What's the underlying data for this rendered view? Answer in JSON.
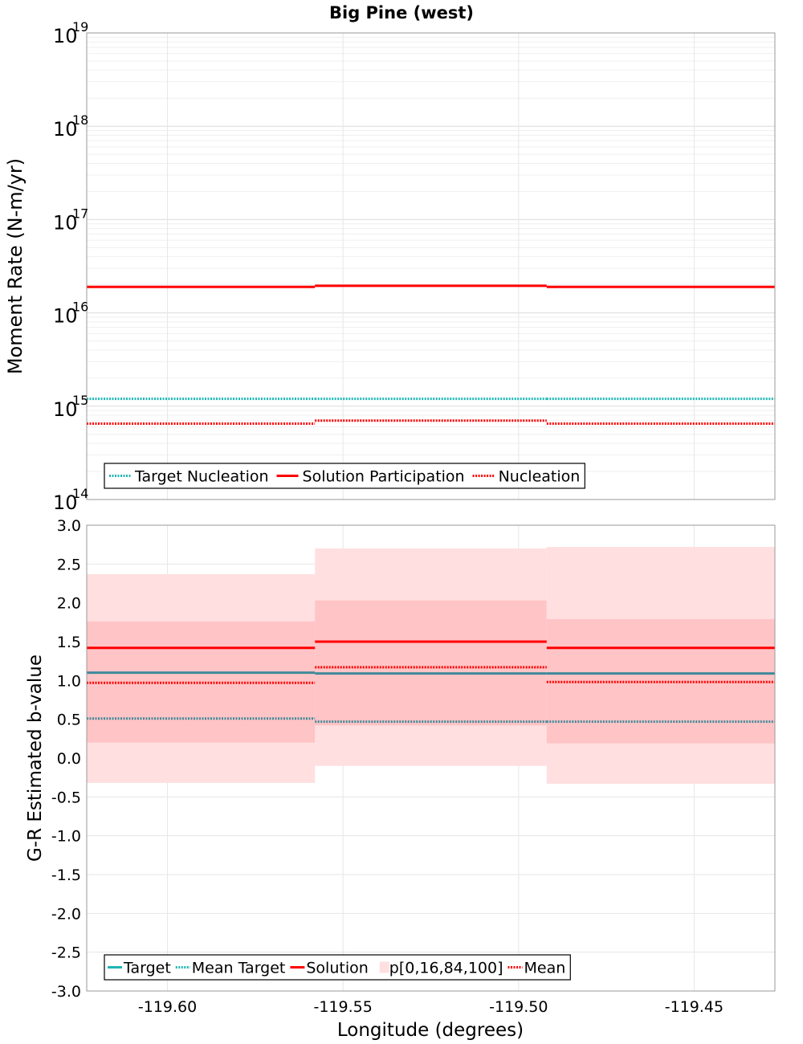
{
  "colors": {
    "target": "#1fb5b5",
    "target_line": "#3f8a9a",
    "solution": "#ff0000",
    "band_outer": "#ffdfe0",
    "band_inner": "#ffc4c6",
    "grid": "#e6e6e6",
    "frame": "#999999"
  },
  "chart_data": [
    {
      "type": "line",
      "title": "Big Pine (west)",
      "ylabel": "Moment Rate (N-m/yr)",
      "y_scale": "log",
      "ylim": [
        100000000000000.0,
        1e+19
      ],
      "xlim": [
        -119.623,
        -119.427
      ],
      "grid": true,
      "legend_position": "bottom-left",
      "y_tick_labels": [
        {
          "base": "10",
          "exp": "14"
        },
        {
          "base": "10",
          "exp": "15"
        },
        {
          "base": "10",
          "exp": "16"
        },
        {
          "base": "10",
          "exp": "17"
        },
        {
          "base": "10",
          "exp": "18"
        },
        {
          "base": "10",
          "exp": "19"
        }
      ],
      "segments": [
        [
          -119.623,
          -119.558
        ],
        [
          -119.558,
          -119.492
        ],
        [
          -119.492,
          -119.427
        ]
      ],
      "series": [
        {
          "name": "Target Nucleation",
          "style": "dotted",
          "color": "#1fb5b5",
          "values": [
            1200000000000000.0,
            1200000000000000.0,
            1200000000000000.0
          ]
        },
        {
          "name": "Solution Participation",
          "style": "solid",
          "color": "#ff0000",
          "values": [
            1.9e+16,
            1.95e+16,
            1.9e+16
          ]
        },
        {
          "name": "Nucleation",
          "style": "dotted",
          "color": "#ff0000",
          "values": [
            650000000000000.0,
            700000000000000.0,
            650000000000000.0
          ]
        }
      ]
    },
    {
      "type": "line",
      "xlabel": "Longitude (degrees)",
      "ylabel": "G-R Estimated b-value",
      "ylim": [
        -3.0,
        3.0
      ],
      "xlim": [
        -119.623,
        -119.427
      ],
      "grid": true,
      "legend_position": "bottom-left",
      "y_ticks": [
        "-3.0",
        "-2.5",
        "-2.0",
        "-1.5",
        "-1.0",
        "-0.5",
        "0.0",
        "0.5",
        "1.0",
        "1.5",
        "2.0",
        "2.5",
        "3.0"
      ],
      "x_ticks": [
        "-119.60",
        "-119.55",
        "-119.50",
        "-119.45"
      ],
      "segments": [
        [
          -119.623,
          -119.558
        ],
        [
          -119.558,
          -119.492
        ],
        [
          -119.492,
          -119.427
        ]
      ],
      "bands": [
        {
          "name": "p[0,16,84,100]",
          "p0": [
            -0.32,
            -0.1,
            -0.33
          ],
          "p16": [
            0.2,
            0.42,
            0.19
          ],
          "p84": [
            1.76,
            2.03,
            1.79
          ],
          "p100": [
            2.37,
            2.7,
            2.72
          ]
        }
      ],
      "series": [
        {
          "name": "Target",
          "style": "solid",
          "color": "#3f8a9a",
          "values": [
            1.1,
            1.09,
            1.09
          ]
        },
        {
          "name": "Mean Target",
          "style": "dotted",
          "color": "#3f8a9a",
          "values": [
            0.51,
            0.47,
            0.47
          ]
        },
        {
          "name": "Solution",
          "style": "solid",
          "color": "#ff0000",
          "values": [
            1.42,
            1.5,
            1.42
          ]
        },
        {
          "name": "Mean",
          "style": "dotted",
          "color": "#ff0000",
          "values": [
            0.97,
            1.17,
            0.98
          ]
        }
      ],
      "legend": [
        {
          "label": "Target",
          "kind": "solid",
          "color": "#1fb5b5"
        },
        {
          "label": "Mean Target",
          "kind": "dotted",
          "color": "#1fb5b5"
        },
        {
          "label": "Solution",
          "kind": "solid",
          "color": "#ff0000"
        },
        {
          "label": "p[0,16,84,100]",
          "kind": "box",
          "color": "#ffdfe0"
        },
        {
          "label": "Mean",
          "kind": "dotted",
          "color": "#ff0000"
        }
      ]
    }
  ]
}
